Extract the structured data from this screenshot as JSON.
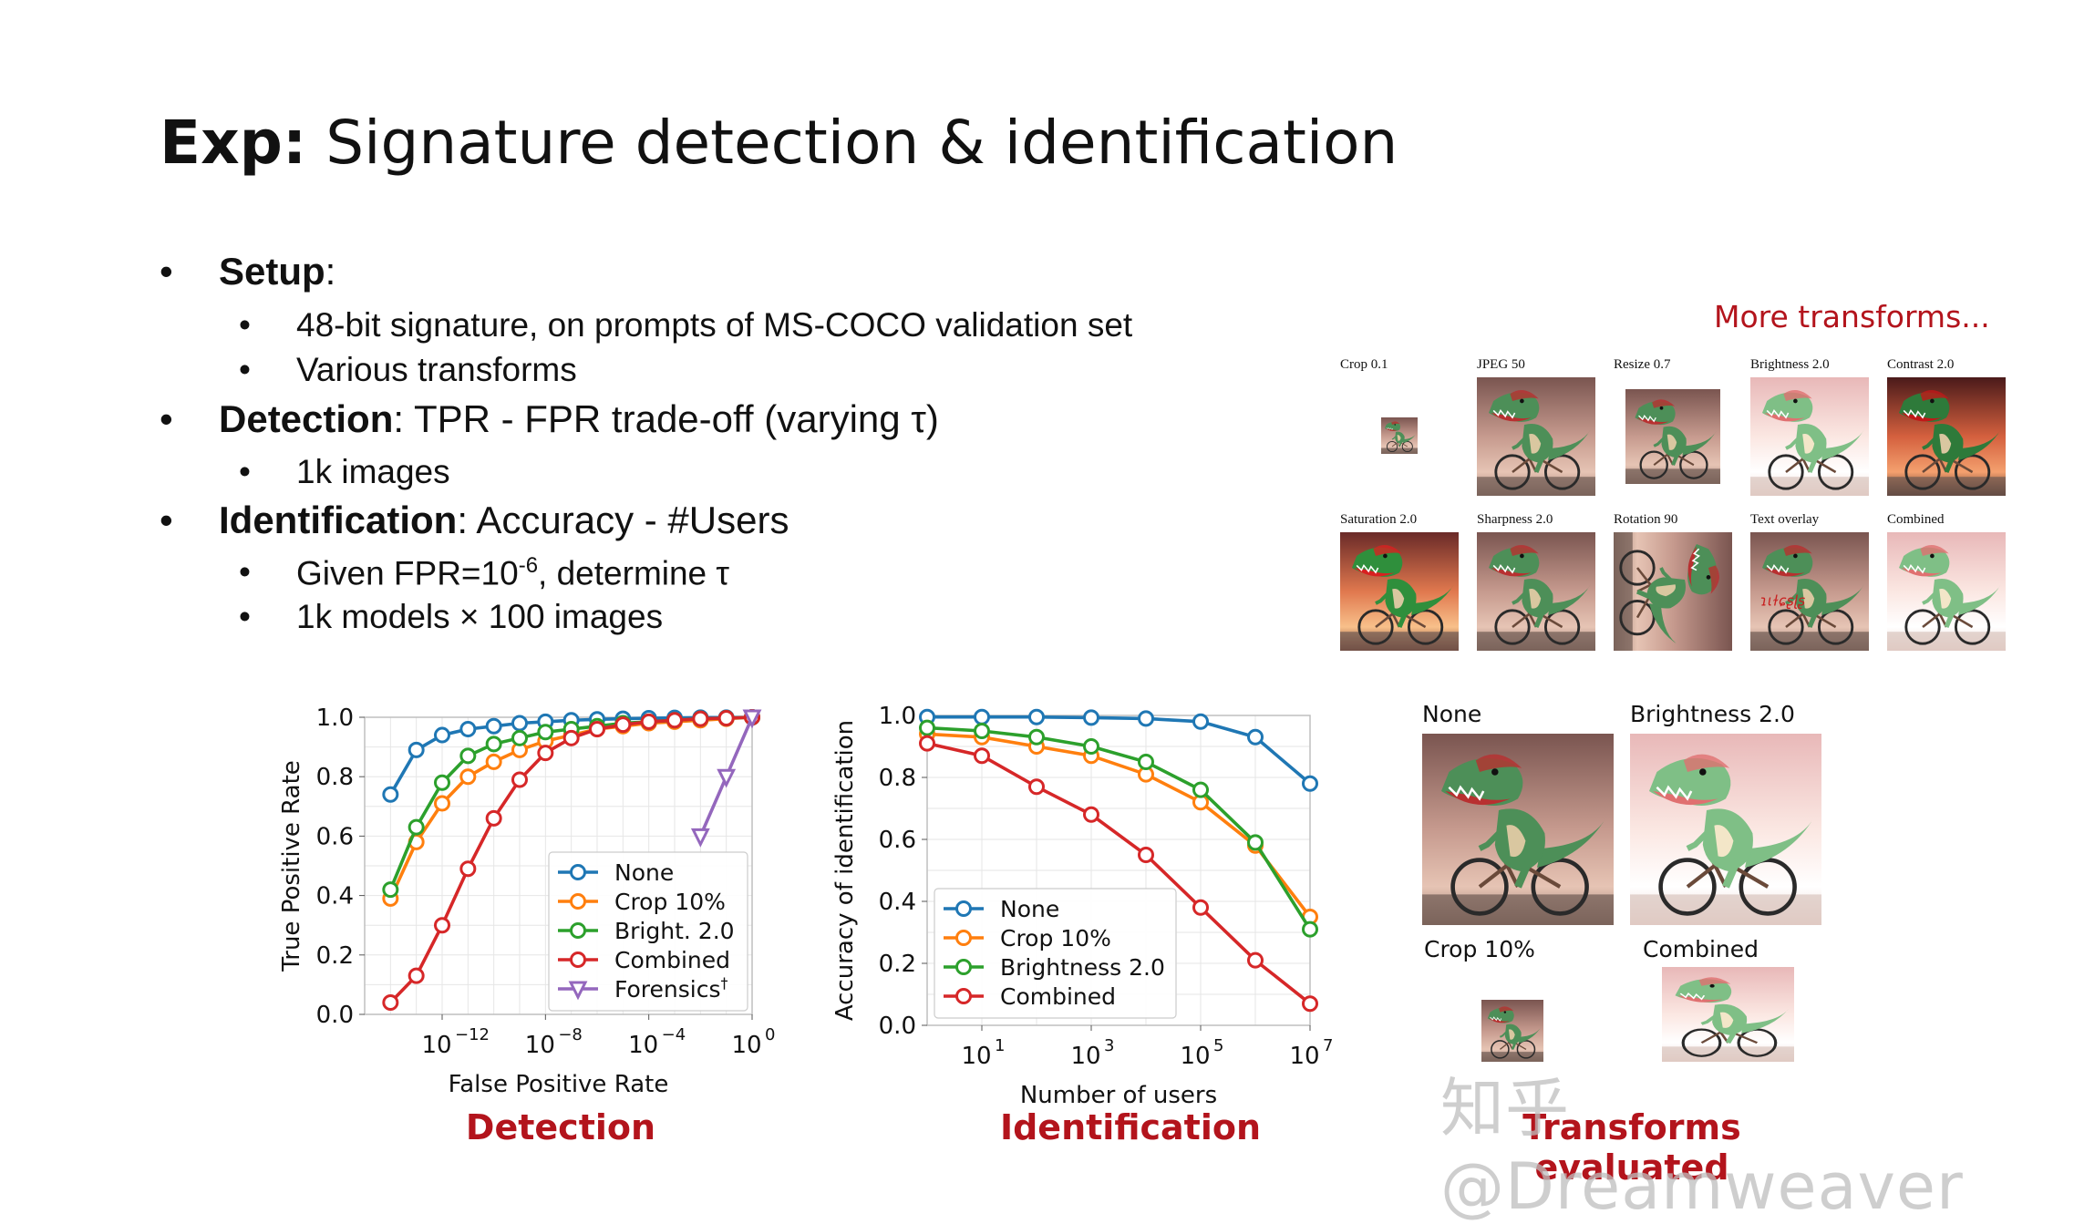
{
  "title": {
    "bold": "Exp:",
    "rest": " Signature detection & identification"
  },
  "bullets": {
    "setup_label": "Setup",
    "setup_items": [
      "48-bit signature, on prompts of MS-COCO validation set",
      "Various transforms"
    ],
    "detection_label": "Detection",
    "detection_text": ": TPR - FPR trade-off (varying τ)",
    "detection_items": [
      "1k images"
    ],
    "identification_label": "Identification",
    "identification_text": ": Accuracy - #Users",
    "ident_item1_pre": "Given FPR=10",
    "ident_item1_sup": "-6",
    "ident_item1_post": ", determine τ",
    "ident_item2": "1k models × 100 images"
  },
  "more_transforms": "More transforms...",
  "thumbnails": [
    {
      "label": "Crop 0.1",
      "style": "crop"
    },
    {
      "label": "JPEG 50",
      "style": "normal"
    },
    {
      "label": "Resize 0.7",
      "style": "resize"
    },
    {
      "label": "Brightness 2.0",
      "style": "bright"
    },
    {
      "label": "Contrast 2.0",
      "style": "contrast"
    },
    {
      "label": "Saturation 2.0",
      "style": "sat"
    },
    {
      "label": "Sharpness 2.0",
      "style": "normal"
    },
    {
      "label": "Rotation 90",
      "style": "rot"
    },
    {
      "label": "Text overlay",
      "style": "text"
    },
    {
      "label": "Combined",
      "style": "combined"
    }
  ],
  "transform_images": [
    {
      "label": "None",
      "style": "normal"
    },
    {
      "label": "Brightness 2.0",
      "style": "bright"
    },
    {
      "label": "Crop 10%",
      "style": "crop"
    },
    {
      "label": "Combined",
      "style": "combined"
    }
  ],
  "captions": {
    "detection": "Detection",
    "identification": "Identification",
    "transforms": "Transforms evaluated"
  },
  "watermark": "知乎 @Dreamweaver",
  "colors": {
    "none": "#1f77b4",
    "crop": "#ff7f0e",
    "bright": "#2ca02c",
    "combined": "#d62728",
    "forensics": "#9467bd",
    "caption_red": "#b3141c"
  },
  "chart_data": [
    {
      "type": "line",
      "xscale": "log",
      "xlabel": "False Positive Rate",
      "ylabel": "True Positive Rate",
      "xlim": [
        1e-15,
        1
      ],
      "ylim": [
        0,
        1
      ],
      "xticks": [
        1e-12,
        1e-08,
        0.0001,
        1
      ],
      "xtick_labels": [
        {
          "base": "10",
          "exp": "−12"
        },
        {
          "base": "10",
          "exp": "−8"
        },
        {
          "base": "10",
          "exp": "−4"
        },
        {
          "base": "10",
          "exp": "0"
        }
      ],
      "yticks": [
        "0.0",
        "0.2",
        "0.4",
        "0.6",
        "0.8",
        "1.0"
      ],
      "grid": true,
      "legend_position": "lower-right",
      "x": [
        1e-14,
        1e-13,
        1e-12,
        1e-11,
        1e-10,
        1e-09,
        1e-08,
        1e-07,
        1e-06,
        1e-05,
        0.0001,
        0.001,
        0.01,
        0.1,
        1
      ],
      "series": [
        {
          "name": "None",
          "color": "#1f77b4",
          "marker": "o",
          "values": [
            0.74,
            0.89,
            0.94,
            0.96,
            0.97,
            0.98,
            0.985,
            0.99,
            0.993,
            0.995,
            0.997,
            0.998,
            0.999,
            0.999,
            1.0
          ]
        },
        {
          "name": "Crop 10%",
          "color": "#ff7f0e",
          "marker": "o",
          "values": [
            0.39,
            0.58,
            0.71,
            0.8,
            0.85,
            0.89,
            0.92,
            0.94,
            0.96,
            0.97,
            0.98,
            0.985,
            0.99,
            0.995,
            1.0
          ]
        },
        {
          "name": "Bright. 2.0",
          "color": "#2ca02c",
          "marker": "o",
          "values": [
            0.42,
            0.63,
            0.78,
            0.87,
            0.91,
            0.93,
            0.95,
            0.96,
            0.97,
            0.98,
            0.985,
            0.99,
            0.995,
            0.997,
            1.0
          ]
        },
        {
          "name": "Combined",
          "color": "#d62728",
          "marker": "o",
          "values": [
            0.04,
            0.13,
            0.3,
            0.49,
            0.66,
            0.79,
            0.88,
            0.93,
            0.96,
            0.975,
            0.985,
            0.99,
            0.995,
            0.997,
            1.0
          ]
        },
        {
          "name": "Forensics",
          "name_sup": "†",
          "color": "#9467bd",
          "marker": "v",
          "x": [
            0.01,
            0.1,
            1
          ],
          "values": [
            0.6,
            0.8,
            1.0
          ]
        }
      ]
    },
    {
      "type": "line",
      "xscale": "log",
      "xlabel": "Number of users",
      "ylabel": "Accuracy of identification",
      "xlim": [
        1,
        10000000.0
      ],
      "ylim": [
        0,
        1
      ],
      "xticks": [
        10,
        1000,
        100000,
        10000000
      ],
      "xtick_labels": [
        {
          "base": "10",
          "exp": "1"
        },
        {
          "base": "10",
          "exp": "3"
        },
        {
          "base": "10",
          "exp": "5"
        },
        {
          "base": "10",
          "exp": "7"
        }
      ],
      "yticks": [
        "0.0",
        "0.2",
        "0.4",
        "0.6",
        "0.8",
        "1.0"
      ],
      "grid": true,
      "legend_position": "lower-left",
      "x": [
        1,
        10,
        100,
        1000,
        10000,
        100000,
        1000000,
        10000000
      ],
      "series": [
        {
          "name": "None",
          "color": "#1f77b4",
          "marker": "o",
          "values": [
            0.995,
            0.995,
            0.995,
            0.993,
            0.99,
            0.98,
            0.93,
            0.78
          ]
        },
        {
          "name": "Crop 10%",
          "color": "#ff7f0e",
          "marker": "o",
          "values": [
            0.94,
            0.93,
            0.9,
            0.87,
            0.81,
            0.72,
            0.58,
            0.35
          ]
        },
        {
          "name": "Brightness 2.0",
          "color": "#2ca02c",
          "marker": "o",
          "values": [
            0.96,
            0.95,
            0.93,
            0.9,
            0.85,
            0.76,
            0.59,
            0.31
          ]
        },
        {
          "name": "Combined",
          "color": "#d62728",
          "marker": "o",
          "values": [
            0.91,
            0.87,
            0.77,
            0.68,
            0.55,
            0.38,
            0.21,
            0.07
          ]
        }
      ]
    }
  ]
}
